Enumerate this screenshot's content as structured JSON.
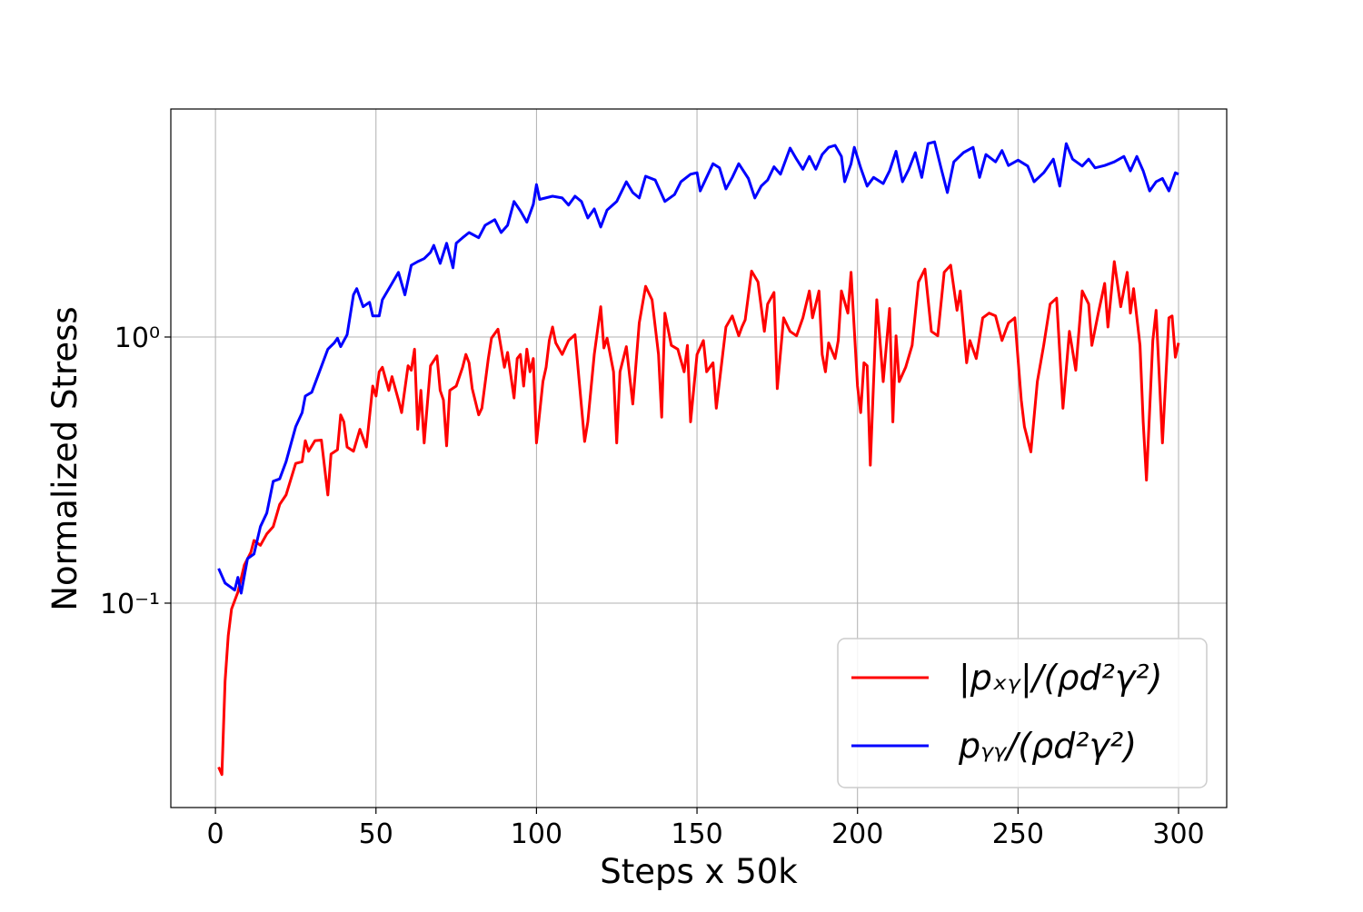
{
  "chart_data": {
    "type": "line",
    "xlabel": "Steps x 50k",
    "ylabel": "Normalized Stress",
    "log_y": true,
    "grid": true,
    "legend": "lower right",
    "xlim": [
      -13.9,
      315
    ],
    "ylim": [
      0.01706,
      7.19
    ],
    "xticks": [
      0,
      50,
      100,
      150,
      200,
      250,
      300
    ],
    "yticks": [
      {
        "value": 0.1,
        "label": "10⁻¹"
      },
      {
        "value": 1,
        "label": "10⁰"
      }
    ],
    "series": [
      {
        "name": "|pₓᵧ|/(ρd²γ²)",
        "color": "#ff0000",
        "x": [
          1,
          2,
          3,
          4,
          5,
          7,
          9,
          11,
          12,
          14,
          16,
          18,
          20,
          22,
          25,
          27,
          28,
          29,
          31,
          33,
          35,
          36,
          38,
          39,
          40,
          41,
          43,
          45,
          47,
          49,
          50,
          51,
          52,
          54,
          55,
          57,
          58,
          60,
          61,
          62,
          63,
          64,
          65,
          66,
          67,
          69,
          70,
          71,
          72,
          73,
          75,
          77,
          78,
          79,
          80,
          82,
          83,
          85,
          86,
          88,
          90,
          91,
          93,
          94,
          95,
          96,
          97,
          98,
          99,
          100,
          102,
          103,
          104,
          105,
          106,
          108,
          110,
          112,
          115,
          116,
          118,
          120,
          121,
          122,
          124,
          125,
          126,
          128,
          130,
          132,
          134,
          136,
          138,
          139,
          140,
          142,
          144,
          146,
          147,
          148,
          150,
          152,
          153,
          155,
          156,
          157,
          159,
          161,
          163,
          164,
          165,
          167,
          169,
          171,
          172,
          174,
          175,
          177,
          179,
          181,
          183,
          185,
          186,
          188,
          189,
          190,
          191,
          193,
          194,
          195,
          197,
          198,
          200,
          201,
          202,
          203,
          204,
          206,
          208,
          210,
          211,
          212,
          213,
          215,
          217,
          219,
          221,
          223,
          225,
          227,
          229,
          231,
          232,
          234,
          235,
          237,
          239,
          241,
          243,
          245,
          247,
          249,
          251,
          252,
          254,
          256,
          258,
          260,
          262,
          264,
          266,
          268,
          270,
          272,
          273,
          275,
          277,
          278,
          280,
          282,
          284,
          285,
          286,
          288,
          289,
          290,
          292,
          293,
          295,
          297,
          298,
          299,
          300
        ],
        "values": [
          0.0242,
          0.0227,
          0.0509,
          0.0755,
          0.095,
          0.11,
          0.139,
          0.155,
          0.172,
          0.165,
          0.182,
          0.194,
          0.235,
          0.255,
          0.335,
          0.34,
          0.408,
          0.372,
          0.408,
          0.41,
          0.255,
          0.363,
          0.377,
          0.51,
          0.48,
          0.386,
          0.372,
          0.45,
          0.386,
          0.654,
          0.6,
          0.74,
          0.77,
          0.63,
          0.71,
          0.58,
          0.52,
          0.78,
          0.75,
          0.9,
          0.45,
          0.63,
          0.4,
          0.56,
          0.78,
          0.85,
          0.63,
          0.58,
          0.39,
          0.63,
          0.654,
          0.77,
          0.86,
          0.8,
          0.64,
          0.51,
          0.54,
          0.83,
          0.99,
          1.07,
          0.77,
          0.875,
          0.59,
          0.83,
          0.86,
          0.654,
          0.9,
          0.74,
          0.83,
          0.4,
          0.68,
          0.77,
          0.97,
          1.09,
          0.95,
          0.86,
          0.97,
          1.02,
          0.405,
          0.48,
          0.86,
          1.3,
          0.91,
          0.99,
          0.74,
          0.4,
          0.74,
          0.92,
          0.56,
          1.13,
          1.55,
          1.38,
          0.86,
          0.5,
          1.23,
          0.93,
          0.9,
          0.74,
          0.93,
          0.48,
          0.86,
          0.97,
          0.74,
          0.8,
          0.54,
          0.68,
          1.09,
          1.2,
          1.01,
          1.09,
          1.16,
          1.77,
          1.61,
          1.05,
          1.33,
          1.47,
          0.64,
          1.18,
          1.05,
          1.01,
          1.18,
          1.49,
          1.18,
          1.49,
          0.86,
          0.74,
          0.95,
          0.83,
          0.97,
          1.49,
          1.23,
          1.75,
          0.654,
          0.52,
          0.8,
          0.78,
          0.33,
          1.38,
          0.68,
          1.28,
          0.48,
          1.01,
          0.68,
          0.77,
          0.93,
          1.61,
          1.8,
          1.05,
          1.01,
          1.75,
          1.86,
          1.26,
          1.49,
          0.8,
          0.97,
          0.83,
          1.18,
          1.23,
          1.2,
          0.97,
          1.13,
          1.18,
          0.58,
          0.46,
          0.37,
          0.68,
          0.93,
          1.33,
          1.4,
          0.54,
          1.05,
          0.75,
          1.49,
          1.33,
          0.93,
          1.23,
          1.59,
          1.09,
          1.92,
          1.3,
          1.75,
          1.23,
          1.52,
          0.93,
          0.48,
          0.29,
          0.97,
          1.26,
          0.4,
          1.18,
          1.2,
          0.84,
          0.95
        ]
      },
      {
        "name": "pᵧᵧ/(ρd²γ²)",
        "color": "#0000ff",
        "x": [
          1,
          3,
          6,
          7,
          8,
          10,
          12,
          14,
          16,
          18,
          20,
          22,
          25,
          27,
          28,
          30,
          32,
          35,
          37,
          38,
          39,
          41,
          43,
          44,
          46,
          48,
          49,
          51,
          52,
          55,
          57,
          59,
          61,
          63,
          65,
          67,
          68,
          70,
          72,
          74,
          75,
          77,
          79,
          82,
          84,
          87,
          89,
          91,
          93,
          95,
          97,
          99,
          100,
          101,
          105,
          108,
          110,
          112,
          114,
          116,
          118,
          120,
          122,
          125,
          128,
          130,
          132,
          134,
          137,
          140,
          143,
          145,
          148,
          150,
          151,
          155,
          157,
          159,
          161,
          163,
          166,
          168,
          170,
          172,
          174,
          176,
          179,
          181,
          183,
          185,
          187,
          189,
          191,
          193,
          195,
          196,
          198,
          199,
          201,
          203,
          205,
          208,
          210,
          212,
          214,
          216,
          218,
          220,
          222,
          224,
          226,
          228,
          230,
          233,
          236,
          238,
          240,
          243,
          245,
          247,
          250,
          253,
          255,
          258,
          261,
          263,
          265,
          267,
          270,
          272,
          274,
          277,
          280,
          283,
          285,
          287,
          289,
          291,
          293,
          295,
          297,
          299,
          300
        ],
        "values": [
          0.135,
          0.119,
          0.112,
          0.125,
          0.109,
          0.147,
          0.153,
          0.194,
          0.218,
          0.287,
          0.293,
          0.34,
          0.46,
          0.52,
          0.6,
          0.62,
          0.72,
          0.9,
          0.95,
          0.99,
          0.92,
          1.02,
          1.44,
          1.52,
          1.3,
          1.35,
          1.2,
          1.2,
          1.38,
          1.59,
          1.75,
          1.44,
          1.86,
          1.92,
          1.97,
          2.08,
          2.21,
          1.89,
          2.25,
          1.82,
          2.25,
          2.36,
          2.47,
          2.36,
          2.63,
          2.76,
          2.47,
          2.63,
          3.23,
          2.98,
          2.7,
          3.15,
          3.74,
          3.29,
          3.38,
          3.33,
          3.13,
          3.38,
          3.23,
          2.8,
          3.03,
          2.59,
          3.0,
          3.23,
          3.83,
          3.49,
          3.33,
          4.02,
          3.89,
          3.23,
          3.43,
          3.83,
          4.09,
          4.14,
          3.54,
          4.48,
          4.32,
          3.6,
          3.98,
          4.48,
          3.94,
          3.33,
          3.69,
          3.89,
          4.36,
          4.09,
          5.13,
          4.66,
          4.27,
          4.77,
          4.27,
          4.85,
          5.16,
          5.25,
          4.77,
          3.83,
          4.48,
          5.16,
          4.32,
          3.69,
          3.98,
          3.77,
          4.21,
          4.99,
          3.83,
          4.27,
          4.93,
          3.98,
          5.33,
          5.41,
          4.32,
          3.49,
          4.55,
          4.93,
          5.16,
          3.98,
          4.85,
          4.55,
          5.02,
          4.41,
          4.62,
          4.39,
          3.83,
          4.14,
          4.66,
          3.69,
          5.33,
          4.66,
          4.39,
          4.66,
          4.32,
          4.41,
          4.55,
          4.77,
          4.21,
          4.77,
          4.21,
          3.54,
          3.83,
          3.94,
          3.54,
          4.14,
          4.09
        ]
      }
    ]
  }
}
